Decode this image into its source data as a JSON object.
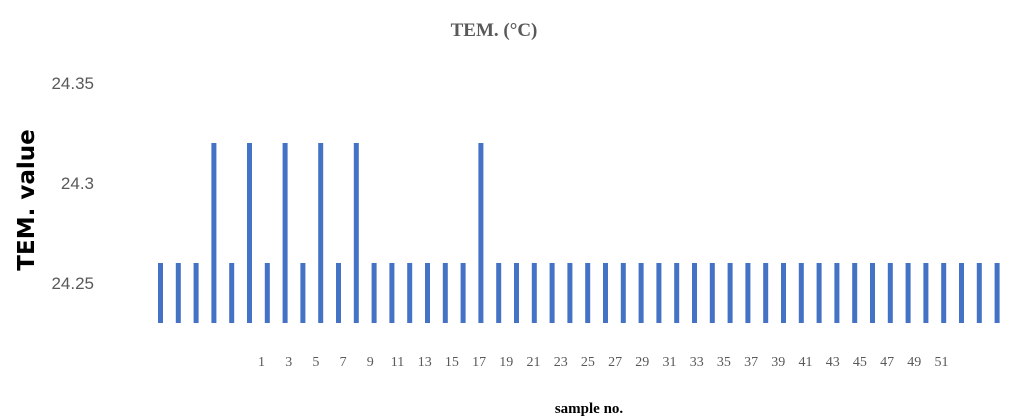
{
  "chart_data": {
    "type": "bar",
    "title": "TEM. (°C)",
    "xlabel": "sample no.",
    "ylabel": "TEM. value",
    "ylim": [
      24.23,
      24.35
    ],
    "yticks": [
      "24.35",
      "24.3",
      "24.25"
    ],
    "ytick_values": [
      24.35,
      24.3,
      24.25
    ],
    "xtick_labels": [
      "1",
      "3",
      "5",
      "7",
      "9",
      "11",
      "13",
      "15",
      "17",
      "19",
      "21",
      "23",
      "25",
      "27",
      "29",
      "31",
      "33",
      "35",
      "37",
      "39",
      "41",
      "43",
      "45",
      "47",
      "49",
      "51"
    ],
    "color": "#4472C4",
    "grid": false,
    "legend": "none",
    "values": [
      24.26,
      24.26,
      24.26,
      24.32,
      24.26,
      24.32,
      24.26,
      24.32,
      24.26,
      24.32,
      24.26,
      24.32,
      24.26,
      24.26,
      24.26,
      24.26,
      24.26,
      24.26,
      24.32,
      24.26,
      24.26,
      24.26,
      24.26,
      24.26,
      24.26,
      24.26,
      24.26,
      24.26,
      24.26,
      24.26,
      24.26,
      24.26,
      24.26,
      24.26,
      24.26,
      24.26,
      24.26,
      24.26,
      24.26,
      24.26,
      24.26,
      24.26,
      24.26,
      24.26,
      24.26,
      24.26,
      24.26,
      24.26
    ]
  }
}
